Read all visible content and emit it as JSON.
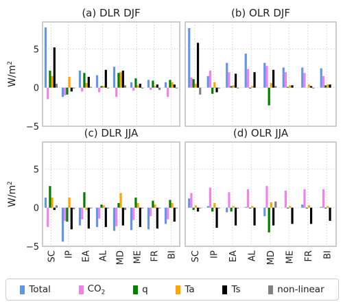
{
  "ylabel_base": "W/m",
  "ylabel_sup": "2",
  "series_colors": {
    "Total": "#6495ed",
    "CO2": "#ee82ee",
    "q": "#008000",
    "Ta": "#ffa500",
    "Ts": "#000000",
    "non-linear": "#808080"
  },
  "legend": [
    {
      "key": "Total",
      "label": "Total",
      "sub": ""
    },
    {
      "key": "CO2",
      "label": "CO",
      "sub": "2"
    },
    {
      "key": "q",
      "label": "q",
      "sub": ""
    },
    {
      "key": "Ta",
      "label": "Ta",
      "sub": ""
    },
    {
      "key": "Ts",
      "label": "Ts",
      "sub": ""
    },
    {
      "key": "non-linear",
      "label": "non-linear",
      "sub": ""
    }
  ],
  "chart_data": [
    {
      "type": "bar",
      "title": "(a) DLR DJF",
      "categories": [
        "SC",
        "IP",
        "EA",
        "AL",
        "MD",
        "ME",
        "FR",
        "BI"
      ],
      "ylim": [
        -5,
        8.5
      ],
      "yticks": [
        -5,
        0,
        5
      ],
      "grid": true,
      "series": [
        {
          "name": "Total",
          "values": [
            7.8,
            -1.2,
            2.2,
            1.6,
            2.7,
            0.7,
            1.0,
            0.7
          ]
        },
        {
          "name": "CO2",
          "values": [
            -1.5,
            -1.0,
            -0.5,
            -0.6,
            -1.2,
            -0.4,
            -0.3,
            -1.2
          ]
        },
        {
          "name": "q",
          "values": [
            2.2,
            -0.9,
            1.9,
            0.2,
            1.9,
            1.2,
            0.9,
            1.0
          ]
        },
        {
          "name": "Ta",
          "values": [
            1.5,
            1.4,
            0.6,
            0.2,
            2.0,
            0.3,
            0.2,
            0.7
          ]
        },
        {
          "name": "Ts",
          "values": [
            5.2,
            -0.5,
            1.4,
            2.3,
            2.2,
            0.5,
            0.4,
            0.4
          ]
        },
        {
          "name": "non-linear",
          "values": [
            0.5,
            -0.1,
            0.1,
            -0.1,
            0.3,
            -0.1,
            -0.3,
            -0.1
          ]
        }
      ]
    },
    {
      "type": "bar",
      "title": "(b) OLR DJF",
      "categories": [
        "SC",
        "IP",
        "EA",
        "AL",
        "MD",
        "ME",
        "FR",
        "BI"
      ],
      "ylim": [
        -5,
        8.5
      ],
      "yticks": [
        -5,
        0,
        5
      ],
      "grid": true,
      "series": [
        {
          "name": "Total",
          "values": [
            7.7,
            1.5,
            3.2,
            4.4,
            3.2,
            2.6,
            2.6,
            2.5
          ]
        },
        {
          "name": "CO2",
          "values": [
            1.3,
            2.2,
            2.0,
            2.4,
            2.8,
            2.0,
            1.9,
            1.5
          ]
        },
        {
          "name": "q",
          "values": [
            1.1,
            -0.8,
            0.2,
            -0.1,
            -2.3,
            0.1,
            0.0,
            0.3
          ]
        },
        {
          "name": "Ta",
          "values": [
            0.5,
            0.7,
            0.3,
            0.2,
            0.6,
            0.3,
            0.4,
            0.4
          ]
        },
        {
          "name": "Ts",
          "values": [
            5.8,
            -0.6,
            1.8,
            2.0,
            2.3,
            0.3,
            0.2,
            0.4
          ]
        },
        {
          "name": "non-linear",
          "values": [
            -0.9,
            -0.1,
            -0.1,
            0.0,
            0.2,
            0.0,
            -0.1,
            0.0
          ]
        }
      ]
    },
    {
      "type": "bar",
      "title": "(c) DLR JJA",
      "categories": [
        "SC",
        "IP",
        "EA",
        "AL",
        "MD",
        "ME",
        "FR",
        "BI"
      ],
      "ylim": [
        -5,
        8.5
      ],
      "yticks": [
        -5,
        0,
        5
      ],
      "grid": true,
      "series": [
        {
          "name": "Total",
          "values": [
            1.3,
            -4.4,
            -2.3,
            -2.5,
            -3.0,
            -2.9,
            -2.8,
            -2.1
          ]
        },
        {
          "name": "CO2",
          "values": [
            -2.5,
            -1.7,
            -1.5,
            -1.4,
            -2.4,
            -1.6,
            -1.1,
            -1.5
          ]
        },
        {
          "name": "q",
          "values": [
            2.8,
            -1.8,
            2.0,
            0.4,
            0.6,
            1.3,
            0.9,
            1.0
          ]
        },
        {
          "name": "Ta",
          "values": [
            1.3,
            1.3,
            -0.3,
            0.3,
            1.9,
            0.6,
            0.4,
            0.6
          ]
        },
        {
          "name": "Ts",
          "values": [
            -0.3,
            -2.8,
            -2.7,
            -2.5,
            -2.3,
            -2.5,
            -2.7,
            -1.8
          ]
        },
        {
          "name": "non-linear",
          "values": [
            0.3,
            -0.2,
            -0.1,
            -0.1,
            -0.3,
            -0.1,
            -0.1,
            -0.1
          ]
        }
      ]
    },
    {
      "type": "bar",
      "title": "(d) OLR JJA",
      "categories": [
        "SC",
        "IP",
        "EA",
        "AL",
        "MD",
        "ME",
        "FR",
        "BI"
      ],
      "ylim": [
        -5,
        8.5
      ],
      "yticks": [
        -5,
        0,
        5
      ],
      "grid": true,
      "series": [
        {
          "name": "Total",
          "values": [
            1.2,
            0.2,
            -0.6,
            0.1,
            -1.1,
            0.0,
            0.4,
            0.1
          ]
        },
        {
          "name": "CO2",
          "values": [
            1.9,
            2.6,
            2.0,
            2.4,
            2.8,
            2.2,
            2.4,
            2.4
          ]
        },
        {
          "name": "q",
          "values": [
            -0.3,
            -0.5,
            -0.5,
            -0.1,
            -3.2,
            -0.1,
            -0.1,
            -0.1
          ]
        },
        {
          "name": "Ta",
          "values": [
            0.3,
            0.6,
            0.2,
            0.2,
            0.7,
            0.2,
            0.3,
            0.2
          ]
        },
        {
          "name": "Ts",
          "values": [
            -0.5,
            -2.6,
            -2.3,
            -2.3,
            -2.3,
            -2.1,
            -2.1,
            -1.7
          ]
        },
        {
          "name": "non-linear",
          "values": [
            -0.1,
            -0.1,
            -0.1,
            0.0,
            0.8,
            0.0,
            0.0,
            0.0
          ]
        }
      ]
    }
  ]
}
